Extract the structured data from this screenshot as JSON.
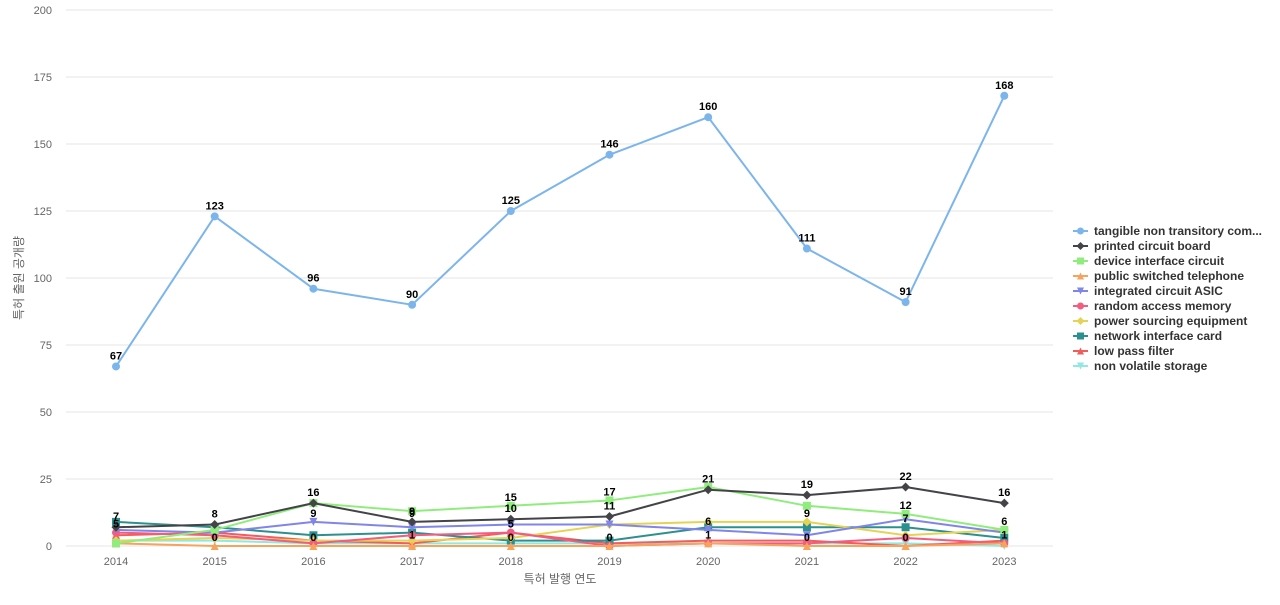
{
  "chart_data": {
    "type": "line",
    "title": "",
    "xlabel": "특허 발행 연도",
    "ylabel": "특허 출원 공개량",
    "ylim": [
      0,
      200
    ],
    "yticks": [
      0,
      25,
      50,
      75,
      100,
      125,
      150,
      175,
      200
    ],
    "grid": true,
    "legend_position": "right",
    "x": [
      "2014",
      "2015",
      "2016",
      "2017",
      "2018",
      "2019",
      "2020",
      "2021",
      "2022",
      "2023"
    ],
    "series": [
      {
        "name": "tangible non transitory com...",
        "color": "#7cb5ec",
        "marker": "circle",
        "values": [
          67,
          123,
          96,
          90,
          125,
          146,
          160,
          111,
          91,
          168
        ],
        "labels": true
      },
      {
        "name": "printed circuit board",
        "color": "#434348",
        "marker": "diamond",
        "values": [
          7,
          8,
          16,
          9,
          10,
          11,
          21,
          19,
          22,
          16
        ],
        "labels": true
      },
      {
        "name": "device interface circuit",
        "color": "#90ed7d",
        "marker": "square",
        "values": [
          1,
          6,
          16,
          13,
          15,
          17,
          22,
          15,
          12,
          6
        ],
        "labels": false
      },
      {
        "name": "public switched telephone",
        "color": "#f7a35c",
        "marker": "triangle",
        "values": [
          1,
          0,
          0,
          0,
          0,
          0,
          1,
          0,
          0,
          1
        ],
        "labels": false
      },
      {
        "name": "integrated circuit ASIC",
        "color": "#8085e9",
        "marker": "triangle-down",
        "values": [
          6,
          5,
          9,
          7,
          8,
          8,
          6,
          4,
          10,
          5
        ],
        "labels": false
      },
      {
        "name": "random access memory",
        "color": "#f15c80",
        "marker": "circle",
        "values": [
          5,
          4,
          1,
          4,
          5,
          0,
          1,
          1,
          3,
          1
        ],
        "labels": false
      },
      {
        "name": "power sourcing equipment",
        "color": "#e4d354",
        "marker": "diamond",
        "values": [
          2,
          3,
          2,
          2,
          3,
          8,
          9,
          9,
          4,
          6
        ],
        "labels": false
      },
      {
        "name": "network interface card",
        "color": "#2b908f",
        "marker": "square",
        "values": [
          9,
          7,
          4,
          5,
          2,
          2,
          7,
          7,
          7,
          3
        ],
        "labels": false
      },
      {
        "name": "low pass filter",
        "color": "#f45b5b",
        "marker": "triangle",
        "values": [
          4,
          5,
          2,
          1,
          5,
          1,
          2,
          2,
          0,
          2
        ],
        "labels": false
      },
      {
        "name": "non volatile storage",
        "color": "#91e8e1",
        "marker": "triangle-down",
        "values": [
          2,
          2,
          1,
          1,
          1,
          1,
          1,
          1,
          1,
          0
        ],
        "labels": false
      }
    ],
    "extra_labels": [
      {
        "x": "2014",
        "y": 5,
        "text": "5"
      },
      {
        "x": "2015",
        "y": 0,
        "text": "0"
      },
      {
        "x": "2016",
        "y": 9,
        "text": "9"
      },
      {
        "x": "2016",
        "y": 0,
        "text": "0"
      },
      {
        "x": "2017",
        "y": 9,
        "text": "9"
      },
      {
        "x": "2017",
        "y": 1,
        "text": "1"
      },
      {
        "x": "2018",
        "y": 15,
        "text": "15"
      },
      {
        "x": "2018",
        "y": 5,
        "text": "5"
      },
      {
        "x": "2018",
        "y": 0,
        "text": "0"
      },
      {
        "x": "2019",
        "y": 17,
        "text": "17"
      },
      {
        "x": "2019",
        "y": 0,
        "text": "0"
      },
      {
        "x": "2020",
        "y": 6,
        "text": "6"
      },
      {
        "x": "2020",
        "y": 1,
        "text": "1"
      },
      {
        "x": "2021",
        "y": 9,
        "text": "9"
      },
      {
        "x": "2021",
        "y": 0,
        "text": "0"
      },
      {
        "x": "2022",
        "y": 12,
        "text": "12"
      },
      {
        "x": "2022",
        "y": 7,
        "text": "7"
      },
      {
        "x": "2022",
        "y": 0,
        "text": "0"
      },
      {
        "x": "2023",
        "y": 6,
        "text": "6"
      },
      {
        "x": "2023",
        "y": 1,
        "text": "1"
      }
    ]
  }
}
